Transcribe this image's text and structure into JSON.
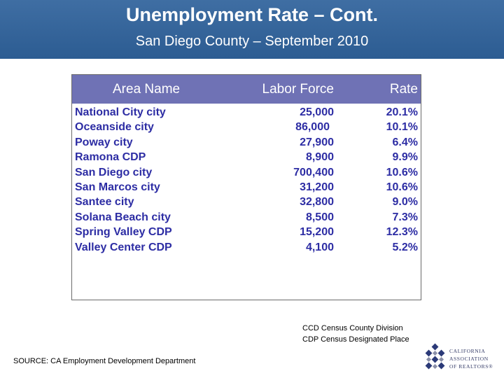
{
  "header": {
    "title": "Unemployment Rate – Cont.",
    "subtitle": "San Diego County – September 2010"
  },
  "table": {
    "columns": [
      "Area Name",
      "Labor Force",
      "Rate"
    ],
    "rows": [
      {
        "name": "National City city",
        "labor_force": "25,000",
        "rate": "20.1%"
      },
      {
        "name": "Oceanside city",
        "labor_force": "86,000",
        "rate": "10.1%"
      },
      {
        "name": "Poway city",
        "labor_force": "27,900",
        "rate": "6.4%"
      },
      {
        "name": "Ramona CDP",
        "labor_force": "8,900",
        "rate": "9.9%"
      },
      {
        "name": "San Diego city",
        "labor_force": "700,400",
        "rate": "10.6%"
      },
      {
        "name": "San Marcos city",
        "labor_force": "31,200",
        "rate": "10.6%"
      },
      {
        "name": "Santee city",
        "labor_force": "32,800",
        "rate": "9.0%"
      },
      {
        "name": "Solana Beach city",
        "labor_force": "8,500",
        "rate": "7.3%"
      },
      {
        "name": "Spring Valley CDP",
        "labor_force": "15,200",
        "rate": "12.3%"
      },
      {
        "name": "Valley Center CDP",
        "labor_force": "4,100",
        "rate": "5.2%"
      }
    ]
  },
  "legend": {
    "ccd": "CCD Census County Division",
    "cdp": "CDP Census Designated Place"
  },
  "source": "SOURCE: CA Employment Development Department",
  "logo": {
    "line1": "CALIFORNIA",
    "line2": "ASSOCIATION",
    "line3": "OF REALTORS®"
  },
  "colors": {
    "header_bg": "#2c5c92",
    "table_header_bg": "#6f72b5",
    "row_text": "#2d2da4"
  }
}
